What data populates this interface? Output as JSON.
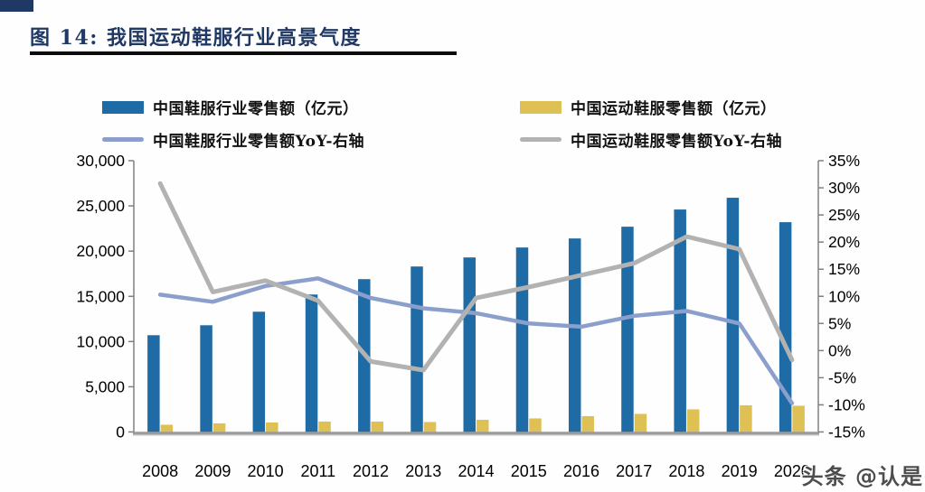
{
  "page": {
    "title": "图 14: 我国运动鞋服行业高景气度",
    "watermark": "头条 @认是"
  },
  "colors": {
    "accent_navy": "#1F3864",
    "bar_blue": "#1F6BA5",
    "bar_yellow": "#DFC054",
    "line_lightblue": "#8C9FCC",
    "line_gray": "#B2B2B2",
    "axis_line": "#808080",
    "baseline": "#9B9B9B",
    "tick_text": "#000000"
  },
  "legend": {
    "items": [
      {
        "type": "bar",
        "color": "#1F6BA5",
        "label": "中国鞋服行业零售额（亿元）"
      },
      {
        "type": "bar",
        "color": "#DFC054",
        "label": "中国运动鞋服零售额（亿元）"
      },
      {
        "type": "line",
        "color": "#8C9FCC",
        "label": "中国鞋服行业零售额YoY-右轴"
      },
      {
        "type": "line",
        "color": "#B2B2B2",
        "label": "中国运动鞋服零售额YoY-右轴"
      }
    ]
  },
  "chart_data": {
    "type": "bar",
    "subtype": "combo-bar-line-dual-axis",
    "title": "我国运动鞋服行业高景气度",
    "categories": [
      "2008",
      "2009",
      "2010",
      "2011",
      "2012",
      "2013",
      "2014",
      "2015",
      "2016",
      "2017",
      "2018",
      "2019",
      "2020"
    ],
    "series": [
      {
        "name": "中国鞋服行业零售额（亿元）",
        "type": "bar",
        "axis": "left",
        "color": "#1F6BA5",
        "values": [
          10700,
          11800,
          13300,
          15200,
          16900,
          18300,
          19300,
          20400,
          21400,
          22700,
          24600,
          25900,
          23200
        ]
      },
      {
        "name": "中国运动鞋服零售额（亿元）",
        "type": "bar",
        "axis": "left",
        "color": "#DFC054",
        "values": [
          800,
          950,
          1050,
          1150,
          1150,
          1100,
          1350,
          1500,
          1750,
          2000,
          2500,
          2950,
          2900
        ]
      },
      {
        "name": "中国鞋服行业零售额YoY-右轴",
        "type": "line",
        "axis": "right",
        "color": "#8C9FCC",
        "values": [
          10.3,
          9.0,
          11.9,
          13.3,
          9.7,
          7.8,
          6.9,
          5.0,
          4.4,
          6.4,
          7.3,
          5.0,
          -9.7
        ]
      },
      {
        "name": "中国运动鞋服零售额YoY-右轴",
        "type": "line",
        "axis": "right",
        "color": "#B2B2B2",
        "values": [
          30.8,
          10.8,
          12.9,
          9.2,
          -2.0,
          -3.6,
          9.7,
          11.7,
          13.9,
          16.1,
          21.0,
          18.7,
          -1.7
        ]
      }
    ],
    "left_axis": {
      "min": 0,
      "max": 30000,
      "step": 5000,
      "tick_labels": [
        "0",
        "5,000",
        "10,000",
        "15,000",
        "20,000",
        "25,000",
        "30,000"
      ]
    },
    "right_axis": {
      "min": -15,
      "max": 35,
      "step": 5,
      "tick_labels": [
        "-15%",
        "-10%",
        "-5%",
        "0%",
        "5%",
        "10%",
        "15%",
        "20%",
        "25%",
        "30%",
        "35%"
      ]
    },
    "grid": false,
    "legend_position": "top"
  }
}
